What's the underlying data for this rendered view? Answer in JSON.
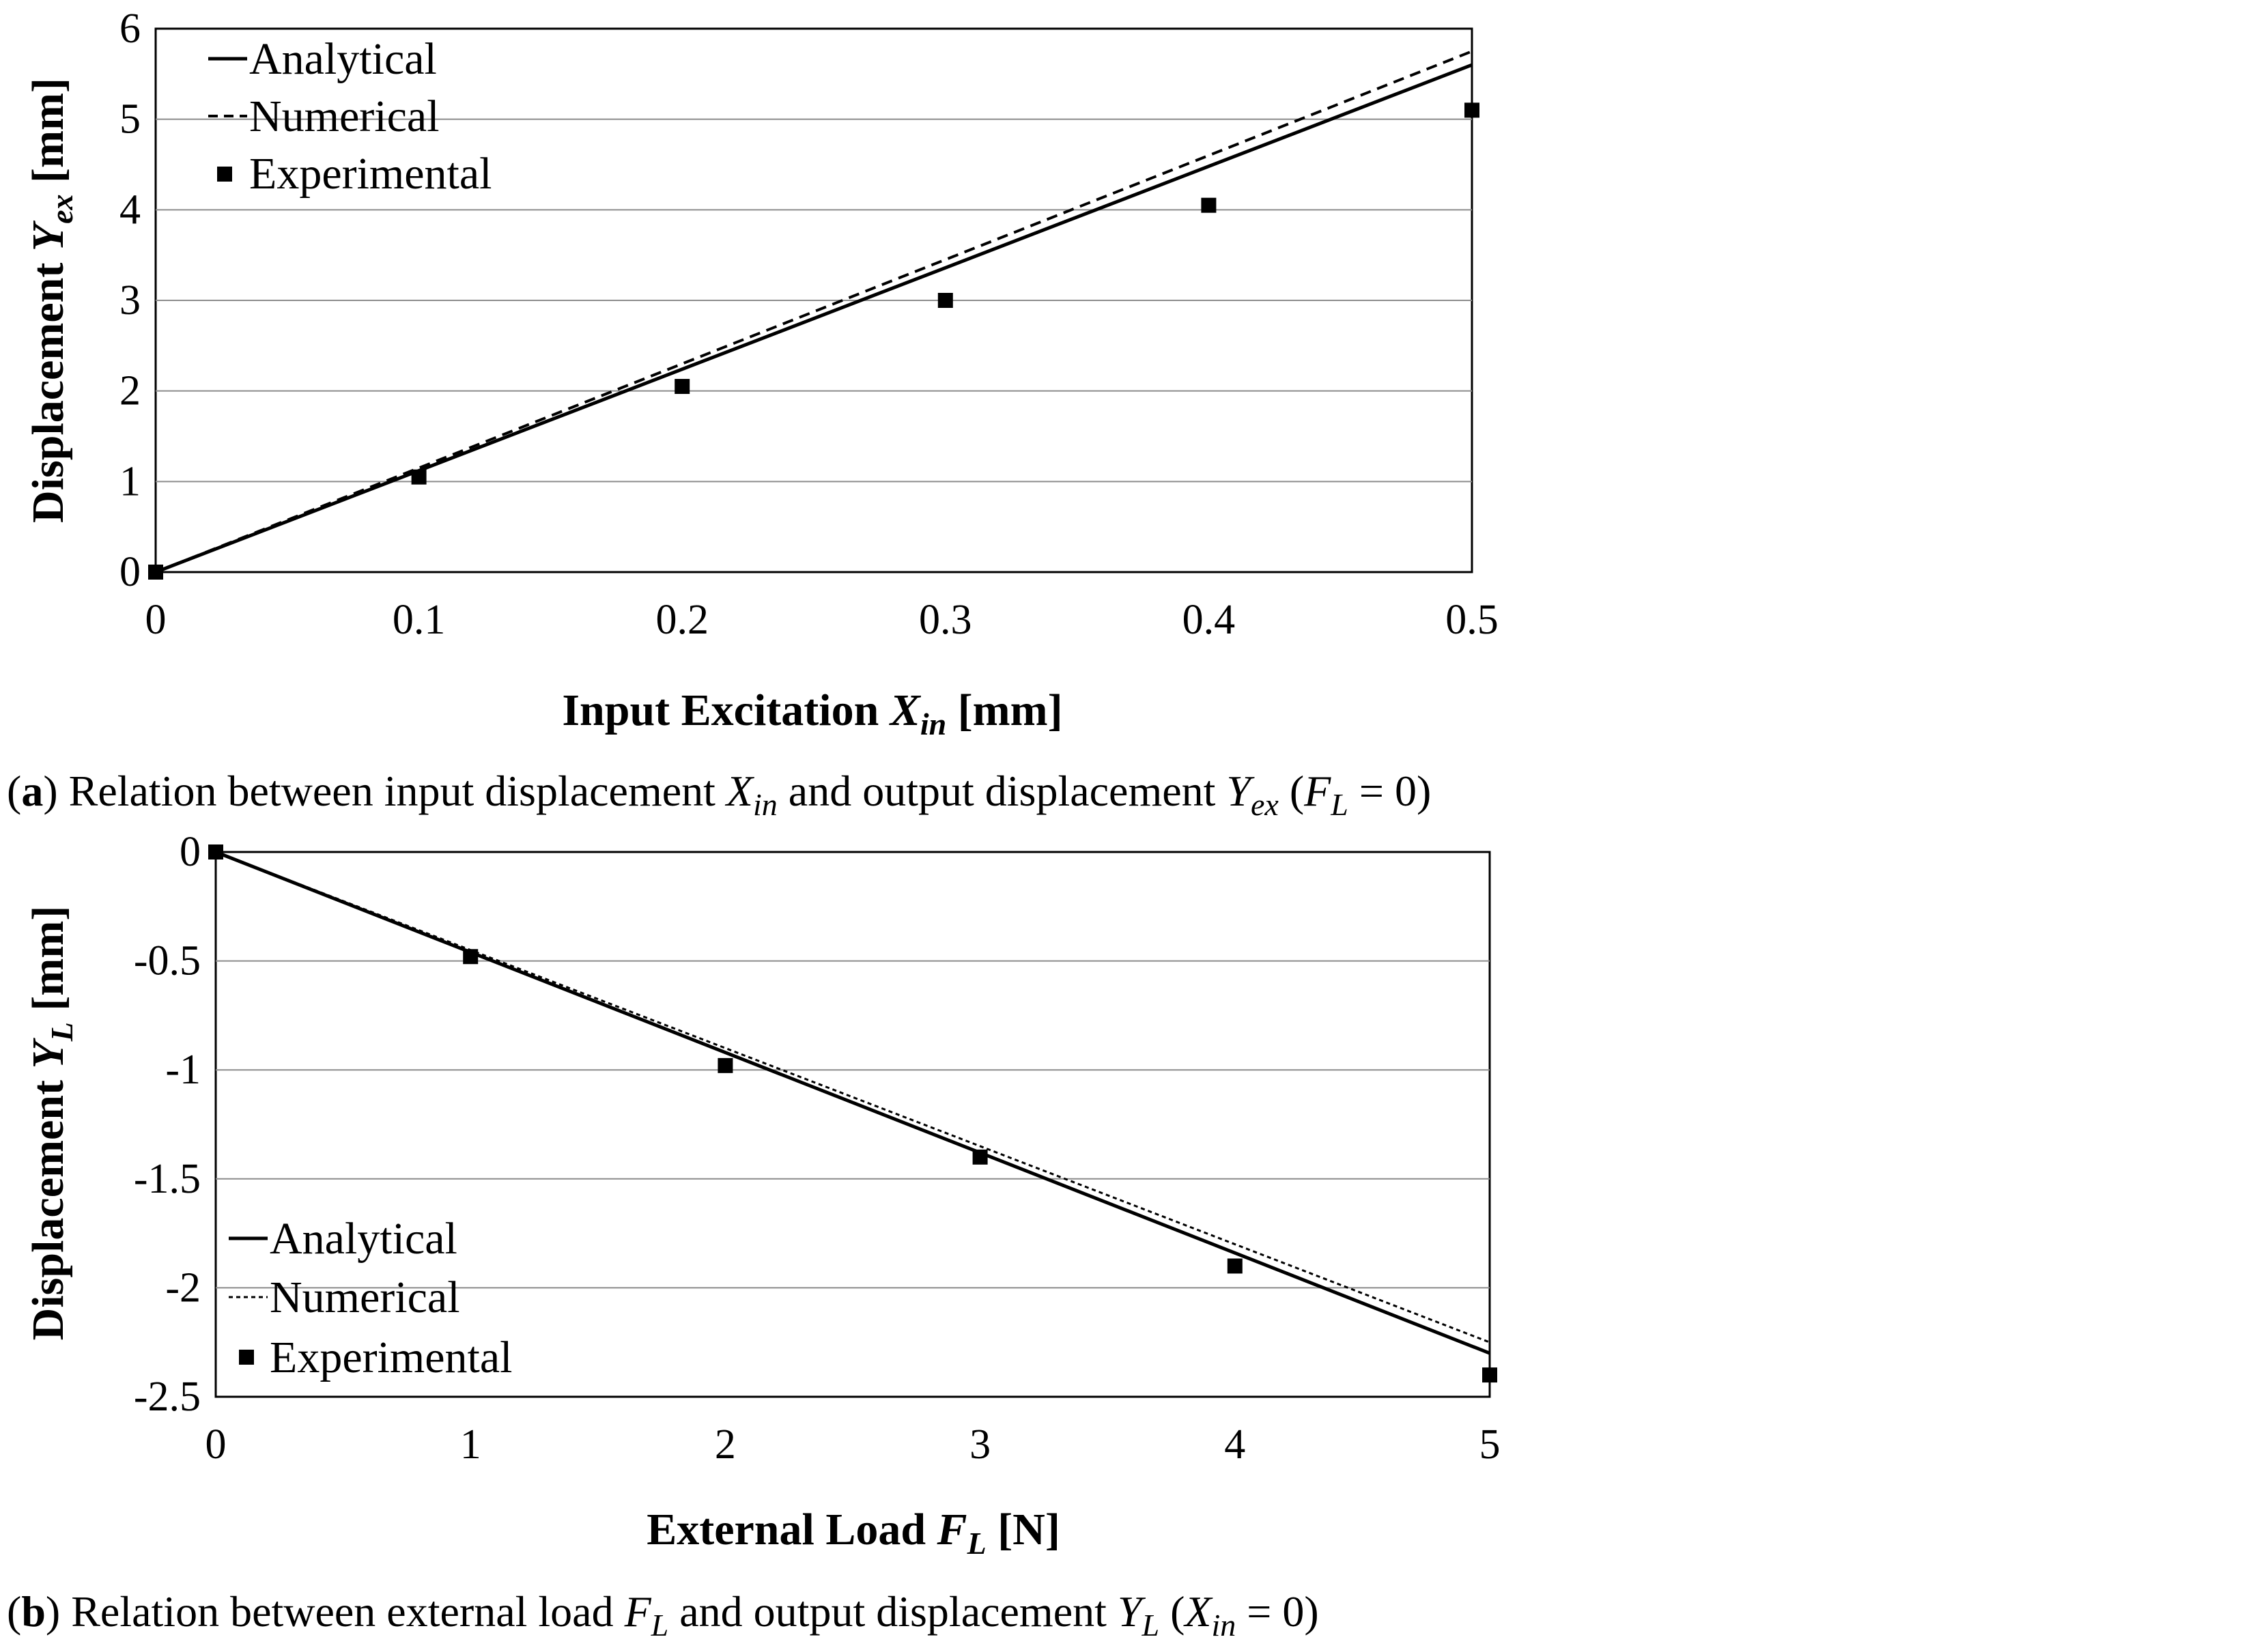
{
  "chart_data": [
    {
      "type": "line",
      "panel": "a",
      "xlabel": {
        "main": "Input Excitation ",
        "var": "X",
        "sub": "in",
        "unit": " [mm]"
      },
      "ylabel": {
        "main": "Displacement ",
        "var": "Y",
        "sub": "ex",
        "unit": " [mm]"
      },
      "xlim": [
        0,
        0.5
      ],
      "ylim": [
        0,
        6
      ],
      "xticks": [
        0,
        0.1,
        0.2,
        0.3,
        0.4,
        0.5
      ],
      "xtick_labels": [
        "0",
        "0.1",
        "0.2",
        "0.3",
        "0.4",
        "0.5"
      ],
      "yticks": [
        0,
        1,
        2,
        3,
        4,
        5,
        6
      ],
      "ytick_labels": [
        "0",
        "1",
        "2",
        "3",
        "4",
        "5",
        "6"
      ],
      "grid": "horizontal",
      "legend_position": "top-left",
      "series": [
        {
          "name": "Analytical",
          "style": "solid",
          "x": [
            0,
            0.5
          ],
          "y": [
            0,
            5.6
          ]
        },
        {
          "name": "Numerical",
          "style": "dashed",
          "x": [
            0,
            0.5
          ],
          "y": [
            0,
            5.75
          ]
        },
        {
          "name": "Experimental",
          "style": "markers",
          "x": [
            0,
            0.1,
            0.2,
            0.3,
            0.4,
            0.5
          ],
          "y": [
            0,
            1.05,
            2.05,
            3.0,
            4.05,
            5.1
          ]
        }
      ],
      "caption": {
        "label": "a",
        "text1": " Relation between input displacement ",
        "var1": "X",
        "sub1": "in",
        "text2": " and output displacement ",
        "var2": "Y",
        "sub2": "ex",
        "text3": " (",
        "var3": "F",
        "sub3": "L",
        "text4": " = 0)"
      }
    },
    {
      "type": "line",
      "panel": "b",
      "xlabel": {
        "main": "External Load ",
        "var": "F",
        "sub": "L",
        "unit": " [N]"
      },
      "ylabel": {
        "main": "Displacement  ",
        "var": "Y",
        "sub": "L",
        "unit": " [mm]"
      },
      "xlim": [
        0,
        5
      ],
      "ylim": [
        -2.5,
        0
      ],
      "xticks": [
        0,
        1,
        2,
        3,
        4,
        5
      ],
      "xtick_labels": [
        "0",
        "1",
        "2",
        "3",
        "4",
        "5"
      ],
      "yticks": [
        0,
        -0.5,
        -1,
        -1.5,
        -2,
        -2.5
      ],
      "ytick_labels": [
        "0",
        "-0.5",
        "-1",
        "-1.5",
        "-2",
        "-2.5"
      ],
      "grid": "horizontal",
      "legend_position": "bottom-left",
      "series": [
        {
          "name": "Analytical",
          "style": "solid",
          "x": [
            0,
            5
          ],
          "y": [
            0,
            -2.3
          ]
        },
        {
          "name": "Numerical",
          "style": "dotted",
          "x": [
            0,
            5
          ],
          "y": [
            0,
            -2.25
          ]
        },
        {
          "name": "Experimental",
          "style": "markers",
          "x": [
            0,
            1,
            2,
            3,
            4,
            5
          ],
          "y": [
            0,
            -0.48,
            -0.98,
            -1.4,
            -1.9,
            -2.4
          ]
        }
      ],
      "caption": {
        "label": "b",
        "text1": " Relation between external load ",
        "var1": "F",
        "sub1": "L",
        "text2": " and output displacement ",
        "var2": "Y",
        "sub2": "L",
        "text3": " (",
        "var3": "X",
        "sub3": "in",
        "text4": " = 0)"
      }
    }
  ]
}
